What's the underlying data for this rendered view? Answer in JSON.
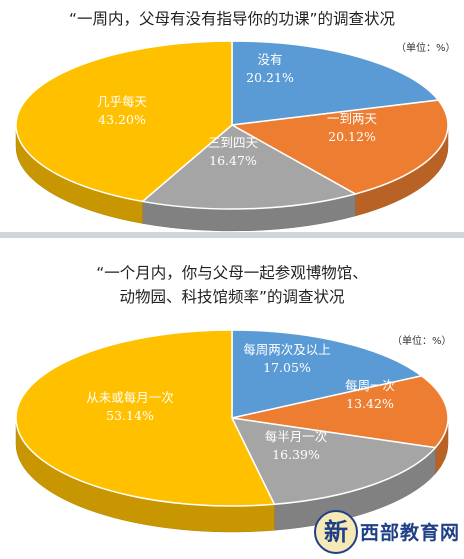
{
  "chart_data": [
    {
      "type": "pie",
      "title": "“一周内，父母有没有指导你的功课”的调查状况",
      "unit_note": "（单位：%）",
      "slices": [
        {
          "label": "没有",
          "value": 20.21,
          "display": "20.21%",
          "color": "#5b9bd5"
        },
        {
          "label": "一到两天",
          "value": 20.12,
          "display": "20.12%",
          "color": "#ed7d31"
        },
        {
          "label": "三到四天",
          "value": 16.47,
          "display": "16.47%",
          "color": "#a5a5a5"
        },
        {
          "label": "几乎每天",
          "value": 43.2,
          "display": "43.20%",
          "color": "#ffc000"
        }
      ]
    },
    {
      "type": "pie",
      "title_line1": "“一个月内，你与父母一起参观博物馆、",
      "title_line2": "动物园、科技馆频率”的调查状况",
      "unit_note": "（单位：%）",
      "slices": [
        {
          "label": "每周两次及以上",
          "value": 17.05,
          "display": "17.05%",
          "color": "#5b9bd5"
        },
        {
          "label": "每周一次",
          "value": 13.42,
          "display": "13.42%",
          "color": "#ed7d31"
        },
        {
          "label": "每半月一次",
          "value": 16.39,
          "display": "16.39%",
          "color": "#a5a5a5"
        },
        {
          "label": "从未或每月一次",
          "value": 53.14,
          "display": "53.14%",
          "color": "#ffc000"
        }
      ]
    }
  ],
  "watermark": {
    "mark": "新",
    "text": "西部教育网"
  }
}
